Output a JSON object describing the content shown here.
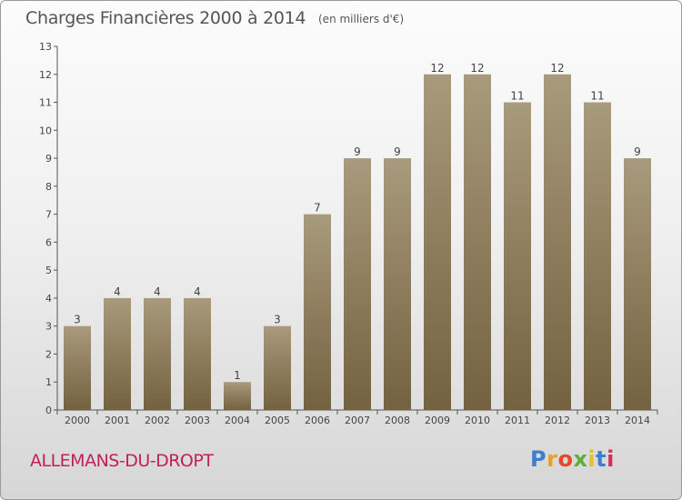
{
  "header": {
    "title": "Charges Financières 2000 à 2014",
    "subtitle": "(en milliers d'€)"
  },
  "footer": {
    "town": "ALLEMANS-DU-DROPT",
    "logo_text": "Proxiti",
    "logo_colors": [
      "#3a7fd0",
      "#e8a020",
      "#e24a2a",
      "#5fae3a",
      "#e8c020",
      "#3a7fd0",
      "#d2305a"
    ]
  },
  "chart_data": {
    "type": "bar",
    "title": "Charges Financières 2000 à 2014",
    "subtitle": "(en milliers d'€)",
    "xlabel": "",
    "ylabel": "",
    "categories": [
      "2000",
      "2001",
      "2002",
      "2003",
      "2004",
      "2005",
      "2006",
      "2007",
      "2008",
      "2009",
      "2010",
      "2011",
      "2012",
      "2013",
      "2014"
    ],
    "values": [
      3,
      4,
      4,
      4,
      1,
      3,
      7,
      9,
      9,
      12,
      12,
      11,
      12,
      11,
      9
    ],
    "ylim": [
      0,
      13
    ],
    "yticks": [
      0,
      1,
      2,
      3,
      4,
      5,
      6,
      7,
      8,
      9,
      10,
      11,
      12,
      13
    ],
    "grid": false,
    "colors": {
      "bar_top": "#a89a7c",
      "bar_bottom": "#74613f",
      "axis": "#555555"
    }
  }
}
